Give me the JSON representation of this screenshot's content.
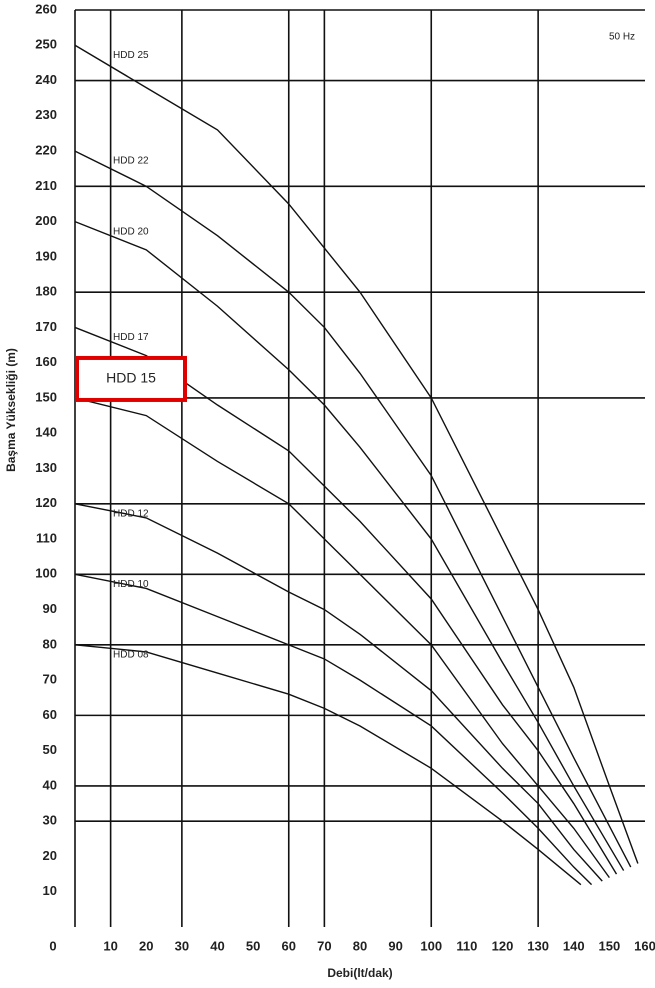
{
  "chart_data": {
    "type": "line",
    "note": "50 Hz",
    "x_label": "Debi(lt/dak)",
    "y_label": "Başma Yüksekliği (m)",
    "xlim": [
      0,
      160
    ],
    "ylim": [
      0,
      260
    ],
    "xticks": [
      0,
      10,
      20,
      30,
      40,
      50,
      60,
      70,
      80,
      90,
      100,
      110,
      120,
      130,
      140,
      150,
      160
    ],
    "yticks": [
      10,
      20,
      30,
      40,
      50,
      60,
      70,
      80,
      90,
      100,
      110,
      120,
      130,
      140,
      150,
      160,
      170,
      180,
      190,
      200,
      210,
      220,
      230,
      240,
      250,
      260
    ],
    "x_grid": [
      10,
      30,
      60,
      70,
      100,
      130
    ],
    "y_grid": [
      30,
      40,
      60,
      80,
      100,
      120,
      150,
      180,
      210,
      240,
      260
    ],
    "color": "#111111",
    "highlight_color": "#e00000",
    "series": [
      {
        "name": "HDD 25",
        "x": [
          0,
          20,
          40,
          60,
          80,
          100,
          120,
          130,
          140,
          150,
          158
        ],
        "values": [
          250,
          238,
          226,
          205,
          180,
          150,
          110,
          90,
          68,
          40,
          18
        ]
      },
      {
        "name": "HDD 22",
        "x": [
          0,
          20,
          40,
          60,
          70,
          80,
          100,
          120,
          130,
          140,
          156
        ],
        "values": [
          220,
          210,
          196,
          180,
          170,
          157,
          128,
          88,
          68,
          48,
          17
        ]
      },
      {
        "name": "HDD 20",
        "x": [
          0,
          20,
          40,
          60,
          70,
          80,
          100,
          120,
          130,
          140,
          154
        ],
        "values": [
          200,
          192,
          176,
          158,
          148,
          136,
          110,
          75,
          58,
          40,
          16
        ]
      },
      {
        "name": "HDD 17",
        "x": [
          0,
          20,
          40,
          60,
          70,
          80,
          100,
          120,
          130,
          140,
          152
        ],
        "values": [
          170,
          162,
          148,
          135,
          125,
          115,
          93,
          63,
          50,
          35,
          15
        ]
      },
      {
        "name": "HDD 15",
        "highlight": true,
        "x": [
          0,
          20,
          40,
          60,
          70,
          80,
          100,
          120,
          130,
          140,
          150
        ],
        "values": [
          150,
          145,
          132,
          120,
          110,
          100,
          80,
          52,
          40,
          28,
          14
        ]
      },
      {
        "name": "HDD 12",
        "x": [
          0,
          20,
          40,
          60,
          70,
          80,
          100,
          120,
          130,
          140,
          148
        ],
        "values": [
          120,
          116,
          106,
          95,
          90,
          83,
          67,
          45,
          35,
          22,
          13
        ]
      },
      {
        "name": "HDD 10",
        "x": [
          0,
          20,
          40,
          60,
          70,
          80,
          100,
          120,
          130,
          140,
          145
        ],
        "values": [
          100,
          96,
          88,
          80,
          76,
          70,
          57,
          38,
          28,
          17,
          12
        ]
      },
      {
        "name": "HDD 08",
        "x": [
          0,
          20,
          40,
          60,
          70,
          80,
          100,
          120,
          130,
          142
        ],
        "values": [
          80,
          78,
          72,
          66,
          62,
          57,
          45,
          30,
          22,
          12
        ]
      }
    ]
  }
}
